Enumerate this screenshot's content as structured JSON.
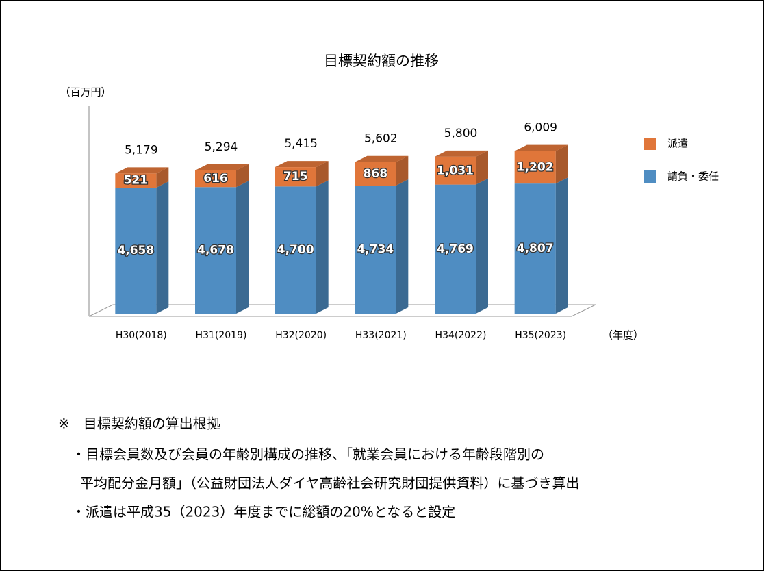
{
  "chart_data": {
    "type": "bar",
    "stacked": true,
    "title": "目標契約額の推移",
    "y_label": "（百万円）",
    "x_label": "（年度）",
    "categories": [
      "H30(2018)",
      "H31(2019)",
      "H32(2020)",
      "H33(2021)",
      "H34(2022)",
      "H35(2023)"
    ],
    "series": [
      {
        "name": "請負・委任",
        "color": "#4f8dc2",
        "values": [
          4658,
          4678,
          4700,
          4734,
          4769,
          4807
        ],
        "value_labels": [
          "4,658",
          "4,678",
          "4,700",
          "4,734",
          "4,769",
          "4,807"
        ]
      },
      {
        "name": "派遣",
        "color": "#e0763a",
        "values": [
          521,
          616,
          715,
          868,
          1031,
          1202
        ],
        "value_labels": [
          "521",
          "616",
          "715",
          "868",
          "1,031",
          "1,202"
        ]
      }
    ],
    "totals": [
      5179,
      5294,
      5415,
      5602,
      5800,
      6009
    ],
    "total_labels": [
      "5,179",
      "5,294",
      "5,415",
      "5,602",
      "5,800",
      "6,009"
    ],
    "ylim": [
      0,
      8000
    ],
    "legend": "right"
  },
  "notes": {
    "heading": "※　目標契約額の算出根拠",
    "items": [
      [
        "・目標会員数及び会員の年齢別構成の推移、「就業会員における年齢段階別の",
        "平均配分金月額」（公益財団法人ダイヤ高齢社会研究財団提供資料）に基づき算出"
      ],
      [
        "・派遣は平成35（2023）年度までに総額の20%となると設定"
      ]
    ]
  }
}
